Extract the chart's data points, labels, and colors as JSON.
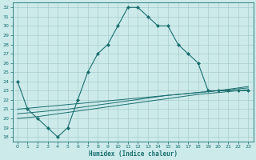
{
  "xlabel": "Humidex (Indice chaleur)",
  "background_color": "#cceaea",
  "grid_color": "#aacccc",
  "line_color": "#1a6e6e",
  "xlim": [
    -0.5,
    23.5
  ],
  "ylim": [
    17.5,
    32.5
  ],
  "xticks": [
    0,
    1,
    2,
    3,
    4,
    5,
    6,
    7,
    8,
    9,
    10,
    11,
    12,
    13,
    14,
    15,
    16,
    17,
    18,
    19,
    20,
    21,
    22,
    23
  ],
  "yticks": [
    18,
    19,
    20,
    21,
    22,
    23,
    24,
    25,
    26,
    27,
    28,
    29,
    30,
    31,
    32
  ],
  "main_line_x": [
    0,
    1,
    2,
    3,
    4,
    5,
    6,
    7,
    8,
    9,
    10,
    11,
    12,
    13,
    14,
    15,
    16,
    17,
    18,
    19,
    20,
    21,
    22,
    23
  ],
  "main_line_y": [
    24,
    21,
    20,
    19,
    18,
    19,
    22,
    25,
    27,
    28,
    30,
    32,
    32,
    31,
    30,
    30,
    28,
    27,
    26,
    23,
    23,
    23,
    23,
    23
  ],
  "line2_x": [
    0,
    1,
    2,
    3,
    4,
    5,
    6,
    7,
    8,
    9,
    10,
    11,
    12,
    13,
    14,
    15,
    16,
    17,
    18,
    19,
    20,
    21,
    22,
    23
  ],
  "line2_y": [
    20.0,
    20.1,
    20.2,
    20.35,
    20.5,
    20.65,
    20.8,
    20.95,
    21.1,
    21.25,
    21.4,
    21.55,
    21.7,
    21.85,
    22.0,
    22.15,
    22.3,
    22.45,
    22.6,
    22.7,
    22.8,
    22.9,
    23.0,
    23.1
  ],
  "line3_x": [
    0,
    1,
    2,
    3,
    4,
    5,
    6,
    7,
    8,
    9,
    10,
    11,
    12,
    13,
    14,
    15,
    16,
    17,
    18,
    19,
    20,
    21,
    22,
    23
  ],
  "line3_y": [
    20.5,
    20.6,
    20.7,
    20.8,
    20.9,
    21.0,
    21.15,
    21.3,
    21.45,
    21.6,
    21.75,
    21.9,
    22.05,
    22.2,
    22.35,
    22.5,
    22.6,
    22.7,
    22.8,
    22.9,
    23.0,
    23.1,
    23.2,
    23.3
  ],
  "line4_x": [
    0,
    1,
    2,
    3,
    4,
    5,
    6,
    7,
    8,
    9,
    10,
    11,
    12,
    13,
    14,
    15,
    16,
    17,
    18,
    19,
    20,
    21,
    22,
    23
  ],
  "line4_y": [
    21.0,
    21.1,
    21.2,
    21.3,
    21.4,
    21.5,
    21.6,
    21.7,
    21.8,
    21.9,
    22.0,
    22.1,
    22.2,
    22.3,
    22.4,
    22.5,
    22.6,
    22.7,
    22.8,
    22.9,
    23.0,
    23.15,
    23.3,
    23.45
  ]
}
